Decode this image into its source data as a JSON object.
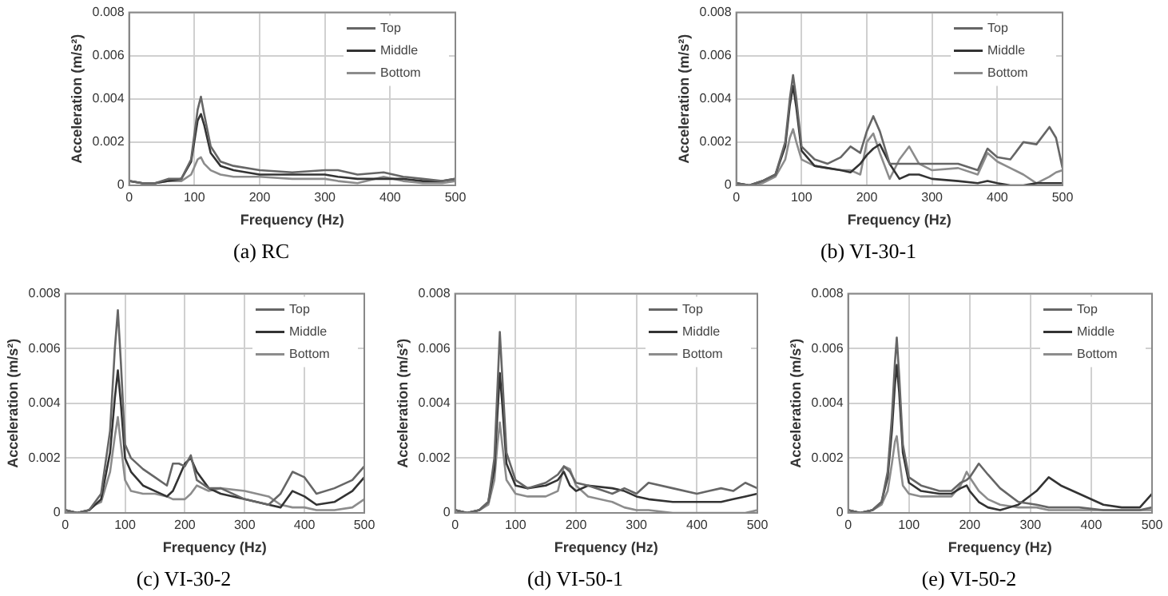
{
  "chart_data": [
    {
      "type": "line",
      "title": "(a) RC",
      "xlabel": "Frequency (Hz)",
      "ylabel": "Acceleration (m/s²)",
      "xlim": [
        0,
        500
      ],
      "xticks": [
        0,
        100,
        200,
        300,
        400,
        500
      ],
      "ylim": [
        0,
        0.008
      ],
      "yticks": [
        0,
        0.002,
        0.004,
        0.006,
        0.008
      ],
      "grid": true,
      "legend": "top right",
      "marker": "none",
      "line_style": "solid",
      "x": [
        0,
        20,
        40,
        60,
        80,
        95,
        105,
        110,
        115,
        125,
        140,
        160,
        200,
        250,
        300,
        320,
        350,
        390,
        420,
        450,
        480,
        500
      ],
      "series": [
        {
          "name": "Top",
          "color": "#666666",
          "values": [
            0.0002,
            0.0001,
            0.0001,
            0.0003,
            0.0003,
            0.0012,
            0.0035,
            0.0041,
            0.0033,
            0.0018,
            0.0011,
            0.0009,
            0.0007,
            0.0006,
            0.0007,
            0.0007,
            0.0005,
            0.0006,
            0.0004,
            0.0003,
            0.0002,
            0.0003
          ]
        },
        {
          "name": "Middle",
          "color": "#333333",
          "values": [
            0.0002,
            0.0001,
            0.0001,
            0.0002,
            0.0003,
            0.0011,
            0.003,
            0.0033,
            0.0028,
            0.0015,
            0.0009,
            0.0007,
            0.0005,
            0.0005,
            0.0005,
            0.0004,
            0.0003,
            0.0003,
            0.0003,
            0.0002,
            0.0002,
            0.0003
          ]
        },
        {
          "name": "Bottom",
          "color": "#8c8c8c",
          "values": [
            0.0002,
            0.0001,
            0.0001,
            0.0002,
            0.0002,
            0.0005,
            0.0012,
            0.0013,
            0.001,
            0.0007,
            0.0005,
            0.0004,
            0.0004,
            0.0003,
            0.0003,
            0.0002,
            0.0001,
            0.0004,
            0.0002,
            0.0001,
            0.0001,
            0.0002
          ]
        }
      ]
    },
    {
      "type": "line",
      "title": "(b) VI-30-1",
      "xlabel": "Frequency (Hz)",
      "ylabel": "Acceleration (m/s²)",
      "xlim": [
        0,
        500
      ],
      "xticks": [
        0,
        100,
        200,
        300,
        400,
        500
      ],
      "ylim": [
        0,
        0.008
      ],
      "yticks": [
        0,
        0.002,
        0.004,
        0.006,
        0.008
      ],
      "grid": true,
      "legend": "top right",
      "marker": "none",
      "line_style": "solid",
      "x": [
        0,
        20,
        40,
        60,
        75,
        82,
        87,
        92,
        100,
        120,
        140,
        160,
        175,
        190,
        200,
        210,
        220,
        235,
        250,
        265,
        280,
        300,
        340,
        370,
        385,
        400,
        420,
        440,
        460,
        480,
        490,
        500
      ],
      "series": [
        {
          "name": "Top",
          "color": "#666666",
          "values": [
            0.0001,
            0,
            0.0002,
            0.0005,
            0.002,
            0.004,
            0.0051,
            0.004,
            0.0018,
            0.0012,
            0.001,
            0.0013,
            0.0018,
            0.0015,
            0.0025,
            0.0032,
            0.0025,
            0.001,
            0.001,
            0.001,
            0.001,
            0.001,
            0.001,
            0.0007,
            0.0017,
            0.0013,
            0.0012,
            0.002,
            0.0019,
            0.0027,
            0.0022,
            0.0008
          ]
        },
        {
          "name": "Middle",
          "color": "#333333",
          "values": [
            0.0001,
            0,
            0.0002,
            0.0005,
            0.0018,
            0.0037,
            0.0046,
            0.0036,
            0.0016,
            0.0009,
            0.0008,
            0.0007,
            0.0006,
            0.001,
            0.0014,
            0.0017,
            0.0019,
            0.001,
            0.0003,
            0.0005,
            0.0005,
            0.0003,
            0.0002,
            0.0001,
            0.0002,
            0.0001,
            0,
            0,
            0.0001,
            0.0001,
            0.0001,
            0.0001
          ]
        },
        {
          "name": "Bottom",
          "color": "#8c8c8c",
          "values": [
            0.0001,
            0,
            0.0001,
            0.0004,
            0.0012,
            0.0022,
            0.0026,
            0.002,
            0.0012,
            0.0009,
            0.0008,
            0.0007,
            0.0007,
            0.0005,
            0.002,
            0.0024,
            0.0015,
            0.0003,
            0.0012,
            0.0018,
            0.001,
            0.0007,
            0.0008,
            0.0005,
            0.0015,
            0.0011,
            0.0008,
            0.0005,
            0.0001,
            0.0004,
            0.0006,
            0.0007
          ]
        }
      ]
    },
    {
      "type": "line",
      "title": "(c) VI-30-2",
      "xlabel": "Frequency (Hz)",
      "ylabel": "Acceleration (m/s²)",
      "xlim": [
        0,
        500
      ],
      "xticks": [
        0,
        100,
        200,
        300,
        400,
        500
      ],
      "ylim": [
        0,
        0.008
      ],
      "yticks": [
        0,
        0.002,
        0.004,
        0.006,
        0.008
      ],
      "grid": true,
      "legend": "top right",
      "marker": "none",
      "line_style": "solid",
      "x": [
        0,
        20,
        40,
        50,
        60,
        75,
        83,
        88,
        93,
        100,
        110,
        130,
        150,
        170,
        180,
        190,
        200,
        210,
        220,
        240,
        260,
        300,
        340,
        360,
        380,
        400,
        420,
        450,
        480,
        500
      ],
      "series": [
        {
          "name": "Top",
          "color": "#666666",
          "values": [
            0.0001,
            0,
            0.0001,
            0.0004,
            0.0007,
            0.003,
            0.006,
            0.0074,
            0.0055,
            0.0025,
            0.002,
            0.0016,
            0.0013,
            0.001,
            0.0018,
            0.0018,
            0.0017,
            0.0021,
            0.0012,
            0.0009,
            0.0009,
            0.0005,
            0.0003,
            0.0007,
            0.0015,
            0.0013,
            0.0007,
            0.0009,
            0.0012,
            0.0017
          ]
        },
        {
          "name": "Middle",
          "color": "#333333",
          "values": [
            0.0001,
            0,
            0.0001,
            0.0003,
            0.0005,
            0.0022,
            0.0042,
            0.0052,
            0.004,
            0.002,
            0.0015,
            0.001,
            0.0008,
            0.0006,
            0.0008,
            0.0013,
            0.0018,
            0.002,
            0.0015,
            0.0009,
            0.0007,
            0.0005,
            0.0003,
            0.0002,
            0.0008,
            0.0006,
            0.0003,
            0.0004,
            0.0008,
            0.0013
          ]
        },
        {
          "name": "Bottom",
          "color": "#8c8c8c",
          "values": [
            0.0001,
            0,
            0.0001,
            0.0003,
            0.0004,
            0.0015,
            0.0028,
            0.0035,
            0.0025,
            0.0012,
            0.0008,
            0.0007,
            0.0007,
            0.0006,
            0.0005,
            0.0005,
            0.0005,
            0.0007,
            0.001,
            0.0008,
            0.0009,
            0.0008,
            0.0006,
            0.0003,
            0.0002,
            0.0002,
            0.0001,
            0.0001,
            0.0002,
            0.0005
          ]
        }
      ]
    },
    {
      "type": "line",
      "title": "(d) VI-50-1",
      "xlabel": "Frequency (Hz)",
      "ylabel": "Acceleration (m/s²)",
      "xlim": [
        0,
        500
      ],
      "xticks": [
        0,
        100,
        200,
        300,
        400,
        500
      ],
      "ylim": [
        0,
        0.008
      ],
      "yticks": [
        0,
        0.002,
        0.004,
        0.006,
        0.008
      ],
      "grid": true,
      "legend": "top right",
      "marker": "none",
      "line_style": "solid",
      "x": [
        0,
        20,
        40,
        55,
        65,
        70,
        74,
        78,
        85,
        100,
        120,
        150,
        170,
        180,
        190,
        200,
        220,
        260,
        280,
        300,
        320,
        360,
        400,
        420,
        440,
        460,
        480,
        500
      ],
      "series": [
        {
          "name": "Top",
          "color": "#666666",
          "values": [
            0.0001,
            0,
            0.0001,
            0.0004,
            0.002,
            0.0045,
            0.0066,
            0.005,
            0.0022,
            0.0012,
            0.0009,
            0.0011,
            0.0014,
            0.0017,
            0.0015,
            0.0011,
            0.001,
            0.0007,
            0.0009,
            0.0007,
            0.0011,
            0.0009,
            0.0007,
            0.0008,
            0.0009,
            0.0008,
            0.0011,
            0.0009
          ]
        },
        {
          "name": "Middle",
          "color": "#333333",
          "values": [
            0.0001,
            0,
            0.0001,
            0.0004,
            0.0016,
            0.0036,
            0.0051,
            0.004,
            0.0018,
            0.001,
            0.0009,
            0.001,
            0.0012,
            0.0015,
            0.001,
            0.0008,
            0.001,
            0.0009,
            0.0008,
            0.0006,
            0.0005,
            0.0004,
            0.0004,
            0.0004,
            0.0004,
            0.0005,
            0.0006,
            0.0007
          ]
        },
        {
          "name": "Bottom",
          "color": "#8c8c8c",
          "values": [
            0.0001,
            0,
            0.0001,
            0.0003,
            0.0012,
            0.0025,
            0.0033,
            0.0025,
            0.0012,
            0.0007,
            0.0006,
            0.0006,
            0.0008,
            0.0017,
            0.0016,
            0.001,
            0.0006,
            0.0004,
            0.0002,
            0.0001,
            0.0001,
            0,
            0,
            0,
            0,
            0,
            0,
            0.0001
          ]
        }
      ]
    },
    {
      "type": "line",
      "title": "(e) VI-50-2",
      "xlabel": "Frequency (Hz)",
      "ylabel": "Acceleration (m/s²)",
      "xlim": [
        0,
        500
      ],
      "xticks": [
        0,
        100,
        200,
        300,
        400,
        500
      ],
      "ylim": [
        0,
        0.008
      ],
      "yticks": [
        0,
        0.002,
        0.004,
        0.006,
        0.008
      ],
      "grid": true,
      "legend": "top right",
      "marker": "none",
      "line_style": "solid",
      "x": [
        0,
        20,
        40,
        55,
        65,
        72,
        77,
        80,
        84,
        90,
        100,
        120,
        150,
        170,
        185,
        195,
        200,
        215,
        230,
        250,
        280,
        310,
        330,
        350,
        380,
        420,
        450,
        480,
        500
      ],
      "series": [
        {
          "name": "Top",
          "color": "#666666",
          "values": [
            0.0001,
            0,
            0.0001,
            0.0004,
            0.0015,
            0.0035,
            0.0055,
            0.0064,
            0.005,
            0.0025,
            0.0013,
            0.001,
            0.0008,
            0.0008,
            0.0011,
            0.0012,
            0.0013,
            0.0018,
            0.0014,
            0.0009,
            0.0004,
            0.0003,
            0.0002,
            0.0002,
            0.0002,
            0.0001,
            0.0001,
            0.0001,
            0.0002
          ]
        },
        {
          "name": "Middle",
          "color": "#333333",
          "values": [
            0.0001,
            0,
            0.0001,
            0.0004,
            0.0013,
            0.003,
            0.0047,
            0.0054,
            0.0044,
            0.0022,
            0.0011,
            0.0008,
            0.0007,
            0.0007,
            0.0009,
            0.001,
            0.0008,
            0.0004,
            0.0002,
            0.0001,
            0.0003,
            0.0008,
            0.0013,
            0.001,
            0.0007,
            0.0003,
            0.0002,
            0.0002,
            0.0007
          ]
        },
        {
          "name": "Bottom",
          "color": "#8c8c8c",
          "values": [
            0.0001,
            0,
            0.0001,
            0.0003,
            0.0008,
            0.0018,
            0.0026,
            0.0028,
            0.002,
            0.001,
            0.0007,
            0.0006,
            0.0006,
            0.0006,
            0.001,
            0.0015,
            0.0013,
            0.0008,
            0.0005,
            0.0003,
            0.0002,
            0.0002,
            0.0001,
            0.0001,
            0.0001,
            0.0001,
            0.0001,
            0.0001,
            0.0001
          ]
        }
      ]
    }
  ]
}
